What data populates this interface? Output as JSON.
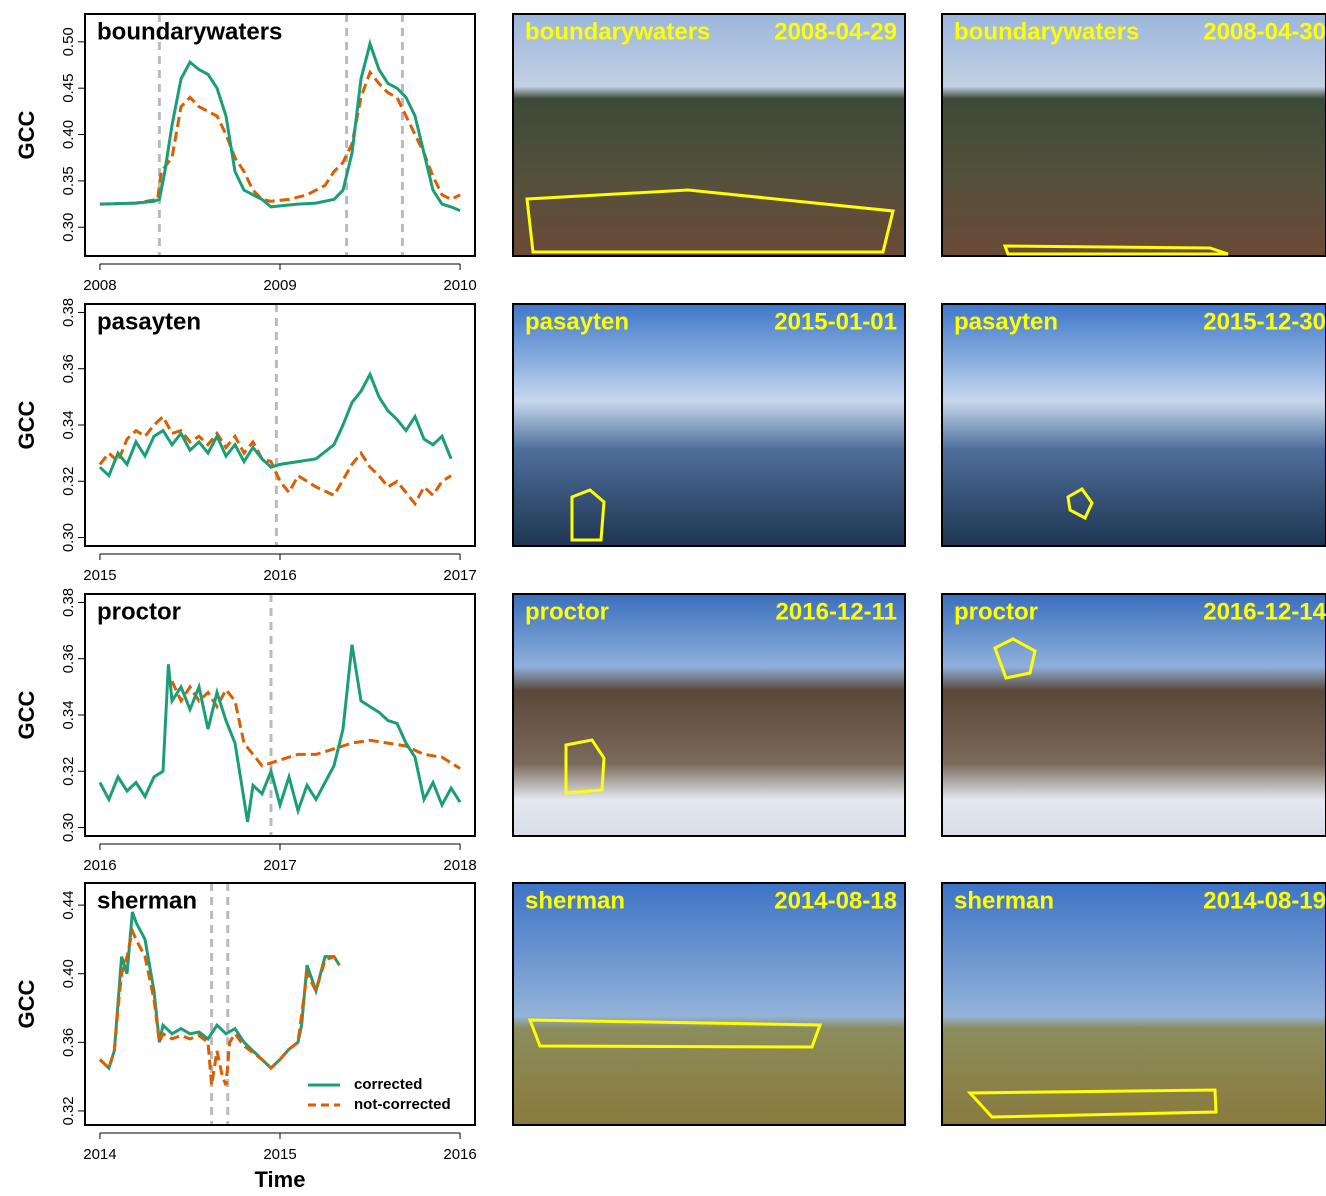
{
  "chart_data": [
    {
      "type": "line",
      "title": "boundarywaters",
      "ylabel": "GCC",
      "xlim": [
        2007.917,
        2010.083
      ],
      "ylim": [
        0.269,
        0.53
      ],
      "xticks": [
        2008,
        2009,
        2010
      ],
      "yticks": [
        {
          "value": 0.3,
          "label": "0.30"
        },
        0.35,
        {
          "value": 0.4,
          "label": "0.40"
        },
        0.45,
        {
          "value": 0.5,
          "label": "0.50"
        }
      ],
      "vlines": [
        2008.33,
        2009.37,
        2009.68
      ],
      "series": [
        {
          "color": "#d95f02",
          "dashed": true,
          "x": [
            2008.0,
            2008.2,
            2008.32,
            2008.34,
            2008.4,
            2008.45,
            2008.5,
            2008.55,
            2008.6,
            2008.65,
            2008.7,
            2008.75,
            2008.8,
            2008.85,
            2008.9,
            2008.95,
            2009.05,
            2009.15,
            2009.25,
            2009.3,
            2009.35,
            2009.4,
            2009.45,
            2009.5,
            2009.55,
            2009.6,
            2009.65,
            2009.7,
            2009.75,
            2009.8,
            2009.85,
            2009.9,
            2009.95,
            2010.0
          ],
          "values": [
            0.325,
            0.326,
            0.33,
            0.36,
            0.375,
            0.43,
            0.44,
            0.43,
            0.425,
            0.42,
            0.4,
            0.375,
            0.36,
            0.34,
            0.33,
            0.328,
            0.33,
            0.335,
            0.345,
            0.36,
            0.37,
            0.39,
            0.44,
            0.467,
            0.455,
            0.445,
            0.44,
            0.42,
            0.4,
            0.38,
            0.355,
            0.335,
            0.33,
            0.335
          ]
        },
        {
          "color": "#1b9e77",
          "x": [
            2008.0,
            2008.2,
            2008.3,
            2008.33,
            2008.36,
            2008.4,
            2008.45,
            2008.5,
            2008.55,
            2008.6,
            2008.65,
            2008.7,
            2008.75,
            2008.8,
            2008.9,
            2008.95,
            2009.0,
            2009.1,
            2009.2,
            2009.3,
            2009.35,
            2009.4,
            2009.45,
            2009.5,
            2009.55,
            2009.6,
            2009.65,
            2009.7,
            2009.75,
            2009.8,
            2009.85,
            2009.9,
            2009.95,
            2010.0
          ],
          "values": [
            0.325,
            0.326,
            0.328,
            0.33,
            0.36,
            0.41,
            0.46,
            0.478,
            0.47,
            0.465,
            0.45,
            0.42,
            0.36,
            0.34,
            0.33,
            0.322,
            0.323,
            0.325,
            0.326,
            0.33,
            0.34,
            0.38,
            0.46,
            0.498,
            0.47,
            0.455,
            0.45,
            0.44,
            0.42,
            0.38,
            0.34,
            0.325,
            0.322,
            0.318
          ]
        }
      ]
    },
    {
      "type": "line",
      "title": "pasayten",
      "ylabel": "GCC",
      "xlim": [
        2014.917,
        2017.083
      ],
      "ylim": [
        0.297,
        0.383
      ],
      "xticks": [
        2015,
        2016,
        2017
      ],
      "yticks": [
        {
          "value": 0.3,
          "label": "0.30"
        },
        0.32,
        0.34,
        0.36,
        0.38
      ],
      "vlines": [
        2015.98
      ],
      "series": [
        {
          "color": "#d95f02",
          "dashed": true,
          "x": [
            2015.0,
            2015.05,
            2015.1,
            2015.15,
            2015.2,
            2015.25,
            2015.3,
            2015.35,
            2015.4,
            2015.45,
            2015.5,
            2015.55,
            2015.6,
            2015.65,
            2015.7,
            2015.75,
            2015.8,
            2015.85,
            2015.9,
            2015.95,
            2016.0,
            2016.05,
            2016.1,
            2016.2,
            2016.3,
            2016.4,
            2016.45,
            2016.5,
            2016.55,
            2016.6,
            2016.65,
            2016.7,
            2016.75,
            2016.8,
            2016.85,
            2016.9,
            2016.95
          ],
          "values": [
            0.326,
            0.33,
            0.327,
            0.335,
            0.338,
            0.336,
            0.34,
            0.343,
            0.337,
            0.338,
            0.334,
            0.336,
            0.333,
            0.337,
            0.332,
            0.336,
            0.33,
            0.334,
            0.328,
            0.327,
            0.32,
            0.316,
            0.322,
            0.318,
            0.315,
            0.326,
            0.33,
            0.325,
            0.322,
            0.318,
            0.32,
            0.316,
            0.312,
            0.318,
            0.315,
            0.32,
            0.322
          ]
        },
        {
          "color": "#1b9e77",
          "x": [
            2015.0,
            2015.05,
            2015.1,
            2015.15,
            2015.2,
            2015.25,
            2015.3,
            2015.35,
            2015.4,
            2015.45,
            2015.5,
            2015.55,
            2015.6,
            2015.65,
            2015.7,
            2015.75,
            2015.8,
            2015.85,
            2015.9,
            2015.95,
            2016.0,
            2016.1,
            2016.2,
            2016.3,
            2016.35,
            2016.4,
            2016.45,
            2016.5,
            2016.55,
            2016.6,
            2016.65,
            2016.7,
            2016.75,
            2016.8,
            2016.85,
            2016.9,
            2016.95
          ],
          "values": [
            0.325,
            0.322,
            0.33,
            0.326,
            0.334,
            0.329,
            0.336,
            0.338,
            0.333,
            0.337,
            0.331,
            0.334,
            0.33,
            0.336,
            0.329,
            0.333,
            0.327,
            0.332,
            0.328,
            0.325,
            0.326,
            0.327,
            0.328,
            0.333,
            0.34,
            0.348,
            0.352,
            0.358,
            0.35,
            0.345,
            0.342,
            0.338,
            0.343,
            0.335,
            0.333,
            0.336,
            0.328
          ]
        }
      ]
    },
    {
      "type": "line",
      "title": "proctor",
      "ylabel": "GCC",
      "xlim": [
        2015.917,
        2018.083
      ],
      "ylim": [
        0.297,
        0.383
      ],
      "xticks": [
        2016,
        2017,
        2018
      ],
      "yticks": [
        {
          "value": 0.3,
          "label": "0.30"
        },
        0.32,
        0.34,
        0.36,
        0.38
      ],
      "vlines": [
        2016.95
      ],
      "series": [
        {
          "color": "#d95f02",
          "dashed": true,
          "x": [
            2016.4,
            2016.45,
            2016.5,
            2016.55,
            2016.6,
            2016.65,
            2016.7,
            2016.75,
            2016.8,
            2016.9,
            2017.0,
            2017.1,
            2017.2,
            2017.3,
            2017.4,
            2017.5,
            2017.6,
            2017.7,
            2017.8,
            2017.9,
            2018.0
          ],
          "values": [
            0.352,
            0.345,
            0.35,
            0.345,
            0.348,
            0.343,
            0.349,
            0.345,
            0.33,
            0.322,
            0.324,
            0.326,
            0.326,
            0.328,
            0.33,
            0.331,
            0.33,
            0.329,
            0.326,
            0.325,
            0.321
          ]
        },
        {
          "color": "#1b9e77",
          "x": [
            2016.0,
            2016.05,
            2016.1,
            2016.15,
            2016.2,
            2016.25,
            2016.3,
            2016.35,
            2016.38,
            2016.4,
            2016.45,
            2016.5,
            2016.55,
            2016.6,
            2016.65,
            2016.7,
            2016.75,
            2016.78,
            2016.82,
            2016.85,
            2016.9,
            2016.95,
            2017.0,
            2017.05,
            2017.1,
            2017.15,
            2017.2,
            2017.25,
            2017.3,
            2017.35,
            2017.4,
            2017.45,
            2017.5,
            2017.55,
            2017.6,
            2017.65,
            2017.7,
            2017.75,
            2017.8,
            2017.85,
            2017.9,
            2017.95,
            2018.0
          ],
          "values": [
            0.316,
            0.31,
            0.318,
            0.313,
            0.316,
            0.311,
            0.318,
            0.32,
            0.358,
            0.345,
            0.35,
            0.342,
            0.35,
            0.335,
            0.348,
            0.338,
            0.33,
            0.318,
            0.302,
            0.315,
            0.312,
            0.32,
            0.308,
            0.318,
            0.306,
            0.315,
            0.31,
            0.316,
            0.322,
            0.335,
            0.365,
            0.345,
            0.343,
            0.341,
            0.338,
            0.337,
            0.33,
            0.325,
            0.31,
            0.316,
            0.308,
            0.314,
            0.309
          ]
        }
      ]
    },
    {
      "type": "line",
      "title": "sherman",
      "ylabel": "GCC",
      "xlabel": "Time",
      "legend": "bottom-right",
      "xlim": [
        2013.917,
        2016.083
      ],
      "ylim": [
        0.3118,
        0.4529
      ],
      "xticks": [
        2014,
        2015,
        2016
      ],
      "yticks": [
        0.32,
        0.36,
        {
          "value": 0.4,
          "label": "0.40"
        },
        0.44
      ],
      "vlines": [
        2014.62,
        2014.71
      ],
      "series": [
        {
          "name": "corrected",
          "color": "#1b9e77",
          "x": [
            2014.0,
            2014.05,
            2014.08,
            2014.12,
            2014.15,
            2014.18,
            2014.2,
            2014.25,
            2014.3,
            2014.33,
            2014.35,
            2014.4,
            2014.45,
            2014.5,
            2014.55,
            2014.6,
            2014.65,
            2014.7,
            2014.75,
            2014.8,
            2014.9,
            2014.95,
            2015.0,
            2015.05,
            2015.1,
            2015.12,
            2015.15,
            2015.2,
            2015.25,
            2015.3,
            2015.33
          ],
          "values": [
            0.35,
            0.345,
            0.355,
            0.41,
            0.4,
            0.436,
            0.43,
            0.42,
            0.39,
            0.36,
            0.37,
            0.365,
            0.368,
            0.365,
            0.366,
            0.362,
            0.37,
            0.365,
            0.368,
            0.36,
            0.35,
            0.345,
            0.35,
            0.356,
            0.36,
            0.37,
            0.405,
            0.39,
            0.41,
            0.41,
            0.405
          ]
        },
        {
          "name": "not-corrected",
          "color": "#d95f02",
          "dashed": true,
          "x": [
            2014.0,
            2014.05,
            2014.08,
            2014.1,
            2014.12,
            2014.15,
            2014.18,
            2014.2,
            2014.25,
            2014.3,
            2014.33,
            2014.35,
            2014.4,
            2014.45,
            2014.5,
            2014.55,
            2014.6,
            2014.62,
            2014.65,
            2014.68,
            2014.7,
            2014.72,
            2014.75,
            2014.8,
            2014.9,
            2014.95,
            2015.0,
            2015.05,
            2015.1,
            2015.15,
            2015.2,
            2015.25,
            2015.3,
            2015.33
          ],
          "values": [
            0.35,
            0.345,
            0.355,
            0.38,
            0.4,
            0.41,
            0.425,
            0.42,
            0.41,
            0.385,
            0.36,
            0.365,
            0.362,
            0.364,
            0.362,
            0.364,
            0.36,
            0.335,
            0.355,
            0.34,
            0.335,
            0.36,
            0.365,
            0.358,
            0.35,
            0.345,
            0.35,
            0.356,
            0.36,
            0.4,
            0.39,
            0.408,
            0.41,
            0.405
          ]
        }
      ]
    }
  ],
  "photos": [
    {
      "site": "boundarywaters",
      "date": "2008-04-29"
    },
    {
      "site": "boundarywaters",
      "date": "2008-04-30"
    },
    {
      "site": "pasayten",
      "date": "2015-01-01"
    },
    {
      "site": "pasayten",
      "date": "2015-12-30"
    },
    {
      "site": "proctor",
      "date": "2016-12-11"
    },
    {
      "site": "proctor",
      "date": "2016-12-14"
    },
    {
      "site": "sherman",
      "date": "2014-08-18"
    },
    {
      "site": "sherman",
      "date": "2014-08-19"
    }
  ]
}
